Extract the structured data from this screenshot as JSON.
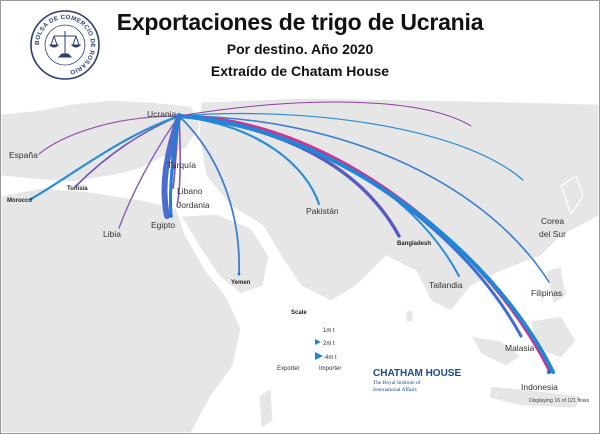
{
  "header": {
    "title": "Exportaciones de trigo de Ucrania",
    "subtitle": "Por destino. Año 2020",
    "source": "Extraído de Chatam House"
  },
  "logo": {
    "name": "BOLSA DE COMERCIO DE ROSARIO",
    "icon": "scales-of-justice-icon"
  },
  "map": {
    "origin": "Ucrania",
    "destinations": [
      {
        "name": "España",
        "style": "normal"
      },
      {
        "name": "Tunisia",
        "style": "bold"
      },
      {
        "name": "Morocco",
        "style": "bold"
      },
      {
        "name": "Libia",
        "style": "normal"
      },
      {
        "name": "Turquía",
        "style": "normal"
      },
      {
        "name": "Libano",
        "style": "normal"
      },
      {
        "name": "Jordania",
        "style": "normal"
      },
      {
        "name": "Egipto",
        "style": "normal"
      },
      {
        "name": "Yemen",
        "style": "bold"
      },
      {
        "name": "Pakistán",
        "style": "normal"
      },
      {
        "name": "Bangladesh",
        "style": "bold"
      },
      {
        "name": "Tailandia",
        "style": "normal"
      },
      {
        "name": "Corea",
        "style": "normal"
      },
      {
        "name": "del Sur",
        "style": "normal"
      },
      {
        "name": "Filipinas",
        "style": "normal"
      },
      {
        "name": "Malasia",
        "style": "normal"
      },
      {
        "name": "Indonesia",
        "style": "normal"
      }
    ],
    "colors": {
      "exporter": "#8e3fa0",
      "importer": "#1e88d8",
      "land": "#e6e6e6",
      "coast": "#ffffff"
    }
  },
  "legend": {
    "title": "Scale",
    "items": [
      "1m t",
      "2m t",
      "4m t"
    ],
    "exporter_label": "Exporter",
    "importer_label": "Importer"
  },
  "branding": {
    "name": "CHATHAM HOUSE",
    "line1": "The Royal Institute of",
    "line2": "International Affairs"
  },
  "footer": {
    "note": "Displaying 16 of 121 flows"
  }
}
